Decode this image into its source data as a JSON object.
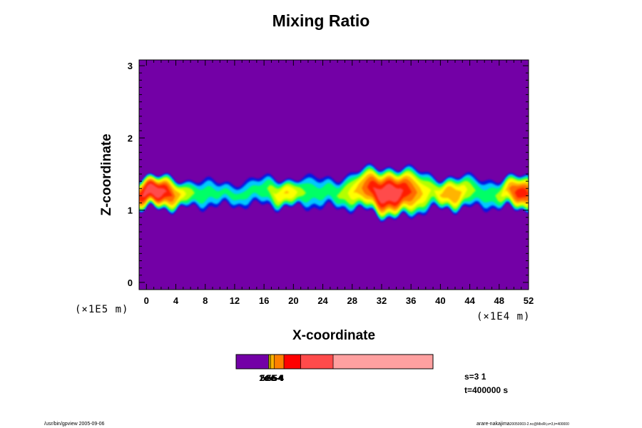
{
  "chart_data": {
    "type": "heatmap",
    "title": "Mixing Ratio",
    "xlabel": "X-coordinate",
    "ylabel": "Z-coordinate",
    "x_unit": "(×1E4 m)",
    "y_unit": "(×1E5 m)",
    "xlim": [
      -1,
      52
    ],
    "ylim": [
      -0.1,
      3.08
    ],
    "x_ticks": [
      "0",
      "4",
      "8",
      "12",
      "16",
      "20",
      "24",
      "28",
      "32",
      "36",
      "40",
      "44",
      "48",
      "52"
    ],
    "y_ticks": [
      "0",
      "1",
      "2",
      "3"
    ],
    "background_color": "#7300a6",
    "level_colors": [
      "#7300a6",
      "#0019e6",
      "#00c8ff",
      "#00ff66",
      "#b4ff00",
      "#ffff00",
      "#ffb400",
      "#ff6a00",
      "#ff1a00",
      "#ff4b4b",
      "#ffa0a0"
    ],
    "colorbar": {
      "segments": [
        {
          "color": "#7300a6",
          "value": 0.165
        },
        {
          "color": "#ffff00",
          "value": 0.005
        },
        {
          "color": "#ffd700",
          "value": 0.005
        },
        {
          "color": "#ffb400",
          "value": 0.018
        },
        {
          "color": "#ff7f00",
          "value": 0.05
        },
        {
          "color": "#ff0000",
          "value": 0.085
        },
        {
          "color": "#ff4b4b",
          "value": 0.165
        },
        {
          "color": "#ffa0a0",
          "value": 0.507
        }
      ],
      "labels": [
        "1e-5",
        "2e-5",
        "5e-5",
        "1e-4",
        "2e-4",
        "5e-4"
      ]
    }
  },
  "info": {
    "s_line": "s=3 1",
    "t_line": "t=400000 s"
  },
  "footer": {
    "left": "/usr/bin/gpview 2005-09-06",
    "right_main": "arare-nakajima",
    "right_small": "20050003-2.nc@MixRt,s=3,t=400000"
  }
}
